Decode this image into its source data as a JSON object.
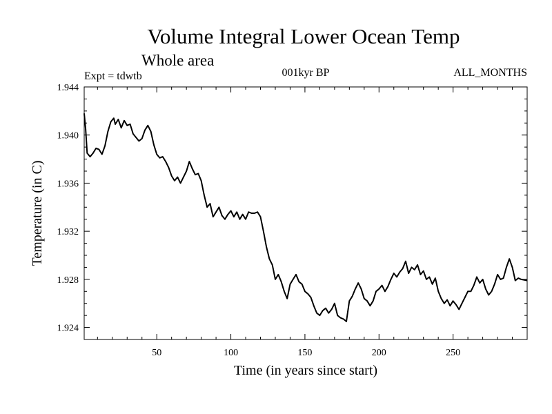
{
  "chart_data": {
    "type": "line",
    "title": "Volume Integral Lower Ocean Temp",
    "subtitle": "Whole area",
    "header_left": "Expt = tdwtb",
    "header_center": "001kyr BP",
    "header_right": "ALL_MONTHS",
    "xlabel": "Time (in years since start)",
    "ylabel": "Temperature (in C)",
    "xlim": [
      1,
      300
    ],
    "ylim": [
      1.923,
      1.944
    ],
    "x_ticks": [
      50,
      100,
      150,
      200,
      250
    ],
    "x_tick_labels": [
      "50",
      "100",
      "150",
      "200",
      "250"
    ],
    "y_ticks": [
      1.924,
      1.928,
      1.932,
      1.936,
      1.94,
      1.944
    ],
    "y_tick_labels": [
      "1.924",
      "1.928",
      "1.932",
      "1.936",
      "1.940",
      "1.944"
    ],
    "series": [
      {
        "name": "Volume Integral Lower Ocean Temp",
        "color": "#000000",
        "points": [
          [
            1,
            1.9418
          ],
          [
            2,
            1.9405
          ],
          [
            3,
            1.9385
          ],
          [
            5,
            1.9382
          ],
          [
            7,
            1.9385
          ],
          [
            9,
            1.9389
          ],
          [
            11,
            1.9388
          ],
          [
            13,
            1.9384
          ],
          [
            15,
            1.9391
          ],
          [
            17,
            1.9403
          ],
          [
            19,
            1.9411
          ],
          [
            21,
            1.9414
          ],
          [
            22,
            1.9409
          ],
          [
            24,
            1.9413
          ],
          [
            26,
            1.9406
          ],
          [
            28,
            1.9412
          ],
          [
            30,
            1.9408
          ],
          [
            32,
            1.9409
          ],
          [
            34,
            1.9401
          ],
          [
            36,
            1.9398
          ],
          [
            38,
            1.9395
          ],
          [
            40,
            1.9397
          ],
          [
            42,
            1.9404
          ],
          [
            44,
            1.9408
          ],
          [
            46,
            1.9403
          ],
          [
            48,
            1.9392
          ],
          [
            50,
            1.9384
          ],
          [
            52,
            1.9381
          ],
          [
            54,
            1.9382
          ],
          [
            56,
            1.9378
          ],
          [
            58,
            1.9373
          ],
          [
            60,
            1.9366
          ],
          [
            62,
            1.9362
          ],
          [
            64,
            1.9365
          ],
          [
            66,
            1.936
          ],
          [
            68,
            1.9365
          ],
          [
            70,
            1.937
          ],
          [
            72,
            1.9378
          ],
          [
            74,
            1.9372
          ],
          [
            76,
            1.9367
          ],
          [
            78,
            1.9368
          ],
          [
            80,
            1.9362
          ],
          [
            82,
            1.935
          ],
          [
            84,
            1.934
          ],
          [
            86,
            1.9343
          ],
          [
            88,
            1.9332
          ],
          [
            90,
            1.9336
          ],
          [
            92,
            1.934
          ],
          [
            94,
            1.9333
          ],
          [
            96,
            1.933
          ],
          [
            98,
            1.9334
          ],
          [
            100,
            1.9337
          ],
          [
            102,
            1.9332
          ],
          [
            104,
            1.9336
          ],
          [
            106,
            1.933
          ],
          [
            108,
            1.9334
          ],
          [
            110,
            1.933
          ],
          [
            112,
            1.9336
          ],
          [
            114,
            1.9335
          ],
          [
            116,
            1.9335
          ],
          [
            118,
            1.9336
          ],
          [
            120,
            1.9332
          ],
          [
            122,
            1.932
          ],
          [
            124,
            1.9307
          ],
          [
            126,
            1.9297
          ],
          [
            128,
            1.9292
          ],
          [
            130,
            1.928
          ],
          [
            132,
            1.9284
          ],
          [
            134,
            1.9278
          ],
          [
            136,
            1.927
          ],
          [
            138,
            1.9264
          ],
          [
            140,
            1.9276
          ],
          [
            142,
            1.928
          ],
          [
            144,
            1.9284
          ],
          [
            146,
            1.9278
          ],
          [
            148,
            1.9276
          ],
          [
            150,
            1.927
          ],
          [
            152,
            1.9268
          ],
          [
            154,
            1.9265
          ],
          [
            156,
            1.9258
          ],
          [
            158,
            1.9252
          ],
          [
            160,
            1.925
          ],
          [
            162,
            1.9254
          ],
          [
            164,
            1.9256
          ],
          [
            166,
            1.9252
          ],
          [
            168,
            1.9255
          ],
          [
            170,
            1.926
          ],
          [
            172,
            1.925
          ],
          [
            174,
            1.9248
          ],
          [
            176,
            1.9247
          ],
          [
            178,
            1.9245
          ],
          [
            180,
            1.9262
          ],
          [
            182,
            1.9266
          ],
          [
            184,
            1.9272
          ],
          [
            186,
            1.9277
          ],
          [
            188,
            1.9272
          ],
          [
            190,
            1.9264
          ],
          [
            192,
            1.9262
          ],
          [
            194,
            1.9258
          ],
          [
            196,
            1.9262
          ],
          [
            198,
            1.927
          ],
          [
            200,
            1.9272
          ],
          [
            202,
            1.9275
          ],
          [
            204,
            1.927
          ],
          [
            206,
            1.9274
          ],
          [
            208,
            1.928
          ],
          [
            210,
            1.9285
          ],
          [
            212,
            1.9282
          ],
          [
            214,
            1.9286
          ],
          [
            216,
            1.9289
          ],
          [
            218,
            1.9295
          ],
          [
            220,
            1.9285
          ],
          [
            222,
            1.929
          ],
          [
            224,
            1.9288
          ],
          [
            226,
            1.9292
          ],
          [
            228,
            1.9284
          ],
          [
            230,
            1.9287
          ],
          [
            232,
            1.928
          ],
          [
            234,
            1.9282
          ],
          [
            236,
            1.9276
          ],
          [
            238,
            1.9281
          ],
          [
            240,
            1.927
          ],
          [
            242,
            1.9264
          ],
          [
            244,
            1.926
          ],
          [
            246,
            1.9263
          ],
          [
            248,
            1.9258
          ],
          [
            250,
            1.9262
          ],
          [
            252,
            1.9259
          ],
          [
            254,
            1.9255
          ],
          [
            256,
            1.926
          ],
          [
            258,
            1.9265
          ],
          [
            260,
            1.927
          ],
          [
            262,
            1.927
          ],
          [
            264,
            1.9275
          ],
          [
            266,
            1.9282
          ],
          [
            268,
            1.9277
          ],
          [
            270,
            1.928
          ],
          [
            272,
            1.9272
          ],
          [
            274,
            1.9267
          ],
          [
            276,
            1.927
          ],
          [
            278,
            1.9276
          ],
          [
            280,
            1.9284
          ],
          [
            282,
            1.928
          ],
          [
            284,
            1.9281
          ],
          [
            286,
            1.929
          ],
          [
            288,
            1.9297
          ],
          [
            290,
            1.929
          ],
          [
            292,
            1.9279
          ],
          [
            294,
            1.9281
          ],
          [
            296,
            1.928
          ],
          [
            300,
            1.9279
          ]
        ]
      }
    ]
  }
}
